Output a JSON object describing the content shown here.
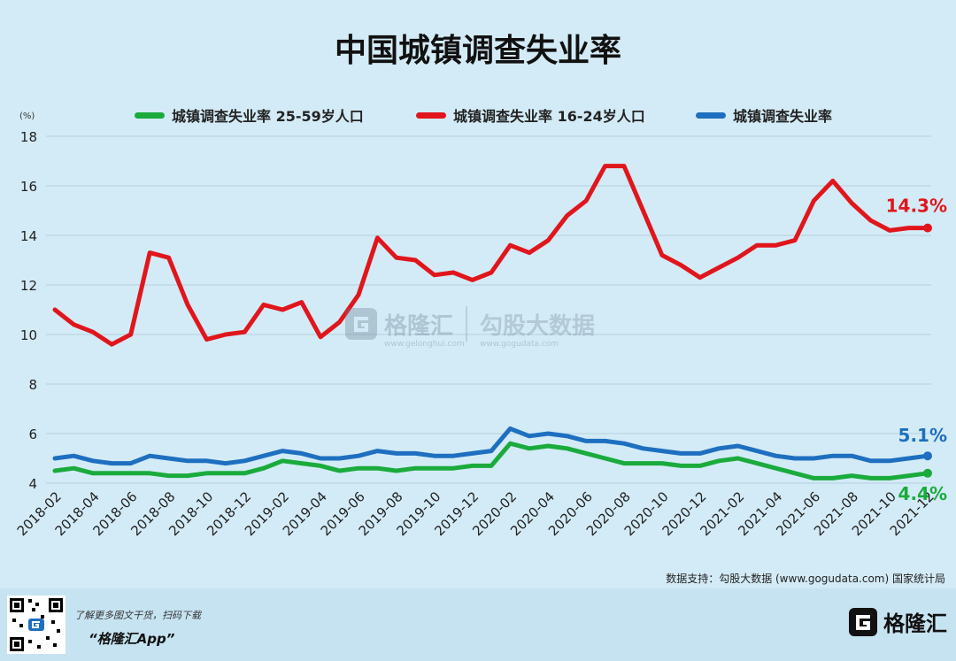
{
  "title": "中国城镇调查失业率",
  "unit_label": "(%)",
  "source_text": "数据支持：勾股大数据 (www.gogudata.com) 国家统计局",
  "watermark": {
    "brand": "格隆汇",
    "brand_sub": "www.gelonghui.com",
    "partner": "勾股大数据",
    "partner_sub": "www.gogudata.com"
  },
  "footer": {
    "line1": "了解更多图文干货，扫码下载",
    "line2": "“格隆汇App”",
    "logo_text": "格隆汇"
  },
  "colors": {
    "green": "#1aab3c",
    "red": "#e0161c",
    "blue": "#1e6fc0"
  },
  "chart_data": {
    "type": "line",
    "title": "中国城镇调查失业率",
    "ylabel": "(%)",
    "ylim": [
      4,
      18
    ],
    "yticks": [
      4,
      6,
      8,
      10,
      12,
      14,
      16,
      18
    ],
    "grid": true,
    "legend_position": "top",
    "x": [
      "2018-02",
      "2018-03",
      "2018-04",
      "2018-05",
      "2018-06",
      "2018-07",
      "2018-08",
      "2018-09",
      "2018-10",
      "2018-11",
      "2018-12",
      "2019-01",
      "2019-02",
      "2019-03",
      "2019-04",
      "2019-05",
      "2019-06",
      "2019-07",
      "2019-08",
      "2019-09",
      "2019-10",
      "2019-11",
      "2019-12",
      "2020-01",
      "2020-02",
      "2020-03",
      "2020-04",
      "2020-05",
      "2020-06",
      "2020-07",
      "2020-08",
      "2020-09",
      "2020-10",
      "2020-11",
      "2020-12",
      "2021-01",
      "2021-02",
      "2021-03",
      "2021-04",
      "2021-05",
      "2021-06",
      "2021-07",
      "2021-08",
      "2021-09",
      "2021-10",
      "2021-11",
      "2021-12"
    ],
    "xticks": [
      "2018-02",
      "2018-04",
      "2018-06",
      "2018-08",
      "2018-10",
      "2018-12",
      "2019-02",
      "2019-04",
      "2019-06",
      "2019-08",
      "2019-10",
      "2019-12",
      "2020-02",
      "2020-04",
      "2020-06",
      "2020-08",
      "2020-10",
      "2020-12",
      "2021-02",
      "2021-04",
      "2021-06",
      "2021-08",
      "2021-10",
      "2021-12"
    ],
    "series": [
      {
        "name": "城镇调查失业率 25-59岁人口",
        "color": "#1aab3c",
        "end_label": "4.4%",
        "values": [
          4.5,
          4.6,
          4.4,
          4.4,
          4.4,
          4.4,
          4.3,
          4.3,
          4.4,
          4.4,
          4.4,
          4.6,
          4.9,
          4.8,
          4.7,
          4.5,
          4.6,
          4.6,
          4.5,
          4.6,
          4.6,
          4.6,
          4.7,
          4.7,
          5.6,
          5.4,
          5.5,
          5.4,
          5.2,
          5.0,
          4.8,
          4.8,
          4.8,
          4.7,
          4.7,
          4.9,
          5.0,
          4.8,
          4.6,
          4.4,
          4.2,
          4.2,
          4.3,
          4.2,
          4.2,
          4.3,
          4.4
        ]
      },
      {
        "name": "城镇调查失业率 16-24岁人口",
        "color": "#e0161c",
        "end_label": "14.3%",
        "values": [
          11.0,
          10.4,
          10.1,
          9.6,
          10.0,
          13.3,
          13.1,
          11.2,
          9.8,
          10.0,
          10.1,
          11.2,
          11.0,
          11.3,
          9.9,
          10.5,
          11.6,
          13.9,
          13.1,
          13.0,
          12.4,
          12.5,
          12.2,
          12.5,
          13.6,
          13.3,
          13.8,
          14.8,
          15.4,
          16.8,
          16.8,
          15.0,
          13.2,
          12.8,
          12.3,
          12.7,
          13.1,
          13.6,
          13.6,
          13.8,
          15.4,
          16.2,
          15.3,
          14.6,
          14.2,
          14.3,
          14.3
        ]
      },
      {
        "name": "城镇调查失业率",
        "color": "#1e6fc0",
        "end_label": "5.1%",
        "values": [
          5.0,
          5.1,
          4.9,
          4.8,
          4.8,
          5.1,
          5.0,
          4.9,
          4.9,
          4.8,
          4.9,
          5.1,
          5.3,
          5.2,
          5.0,
          5.0,
          5.1,
          5.3,
          5.2,
          5.2,
          5.1,
          5.1,
          5.2,
          5.3,
          6.2,
          5.9,
          6.0,
          5.9,
          5.7,
          5.7,
          5.6,
          5.4,
          5.3,
          5.2,
          5.2,
          5.4,
          5.5,
          5.3,
          5.1,
          5.0,
          5.0,
          5.1,
          5.1,
          4.9,
          4.9,
          5.0,
          5.1
        ]
      }
    ]
  }
}
